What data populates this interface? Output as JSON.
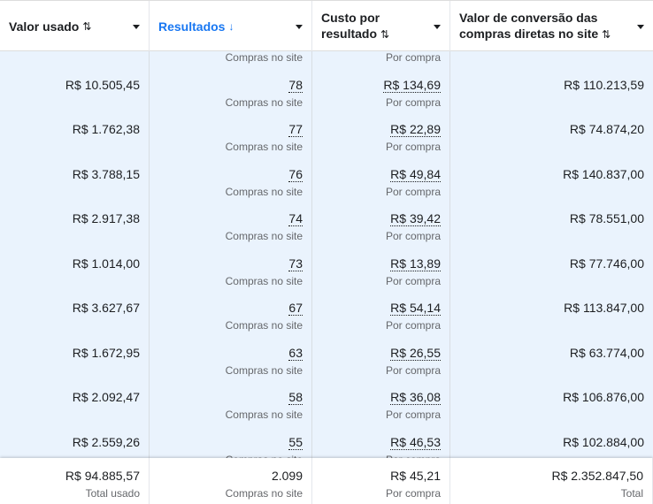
{
  "columns": [
    {
      "label": "Valor usado",
      "sort_icon": "sort-both-icon"
    },
    {
      "label": "Resultados",
      "sort_icon": "arrow-down-icon",
      "active": true
    },
    {
      "label": "Custo por resultado",
      "sort_icon": "sort-both-icon"
    },
    {
      "label": "Valor de conversão das compras diretas no site",
      "sort_icon": "sort-both-icon"
    }
  ],
  "result_sub": "Compras no site",
  "cost_sub": "Por compra",
  "rows": [
    {
      "spent": "R$ 10.505,45",
      "results": "78",
      "cost": "R$ 134,69",
      "conv": "R$ 110.213,59"
    },
    {
      "spent": "R$ 1.762,38",
      "results": "77",
      "cost": "R$ 22,89",
      "conv": "R$ 74.874,20"
    },
    {
      "spent": "R$ 3.788,15",
      "results": "76",
      "cost": "R$ 49,84",
      "conv": "R$ 140.837,00"
    },
    {
      "spent": "R$ 2.917,38",
      "results": "74",
      "cost": "R$ 39,42",
      "conv": "R$ 78.551,00"
    },
    {
      "spent": "R$ 1.014,00",
      "results": "73",
      "cost": "R$ 13,89",
      "conv": "R$ 77.746,00"
    },
    {
      "spent": "R$ 3.627,67",
      "results": "67",
      "cost": "R$ 54,14",
      "conv": "R$ 113.847,00"
    },
    {
      "spent": "R$ 1.672,95",
      "results": "63",
      "cost": "R$ 26,55",
      "conv": "R$ 63.774,00"
    },
    {
      "spent": "R$ 2.092,47",
      "results": "58",
      "cost": "R$ 36,08",
      "conv": "R$ 106.876,00"
    },
    {
      "spent": "R$ 2.559,26",
      "results": "55",
      "cost": "R$ 46,53",
      "conv": "R$ 102.884,00"
    }
  ],
  "totals": {
    "spent": "R$ 94.885,57",
    "spent_sub": "Total usado",
    "results": "2.099",
    "results_sub": "Compras no site",
    "cost": "R$ 45,21",
    "cost_sub": "Por compra",
    "conv": "R$ 2.352.847,50",
    "conv_sub": "Total"
  },
  "colors": {
    "accent": "#1877f2",
    "row_bg": "#eaf3fd"
  }
}
